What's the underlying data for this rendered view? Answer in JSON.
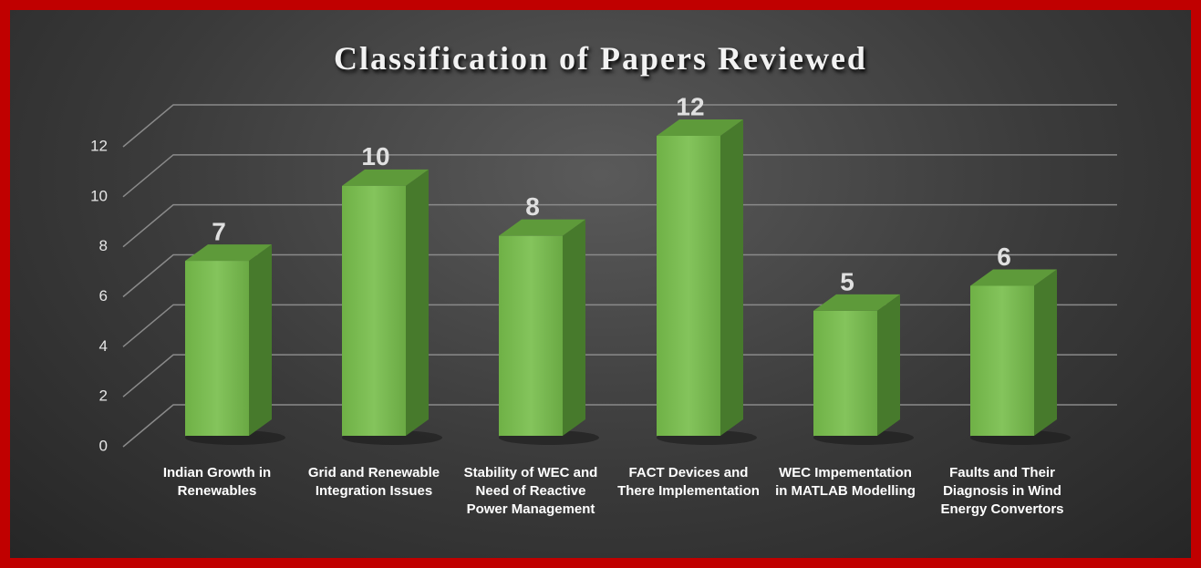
{
  "chart_data": {
    "type": "bar3d",
    "title": "Classification of Papers Reviewed",
    "categories": [
      "Indian Growth in Renewables",
      "Grid and Renewable Integration Issues",
      "Stability of WEC and Need of Reactive Power Management",
      "FACT Devices and There Implementation",
      "WEC Impementation in MATLAB Modelling",
      "Faults and Their Diagnosis in Wind Energy Convertors"
    ],
    "values": [
      7,
      10,
      8,
      12,
      5,
      6
    ],
    "color": "#76b84f",
    "ylim": [
      0,
      12
    ],
    "yticks": [
      0,
      2,
      4,
      6,
      8,
      10,
      12
    ],
    "grid": true
  }
}
